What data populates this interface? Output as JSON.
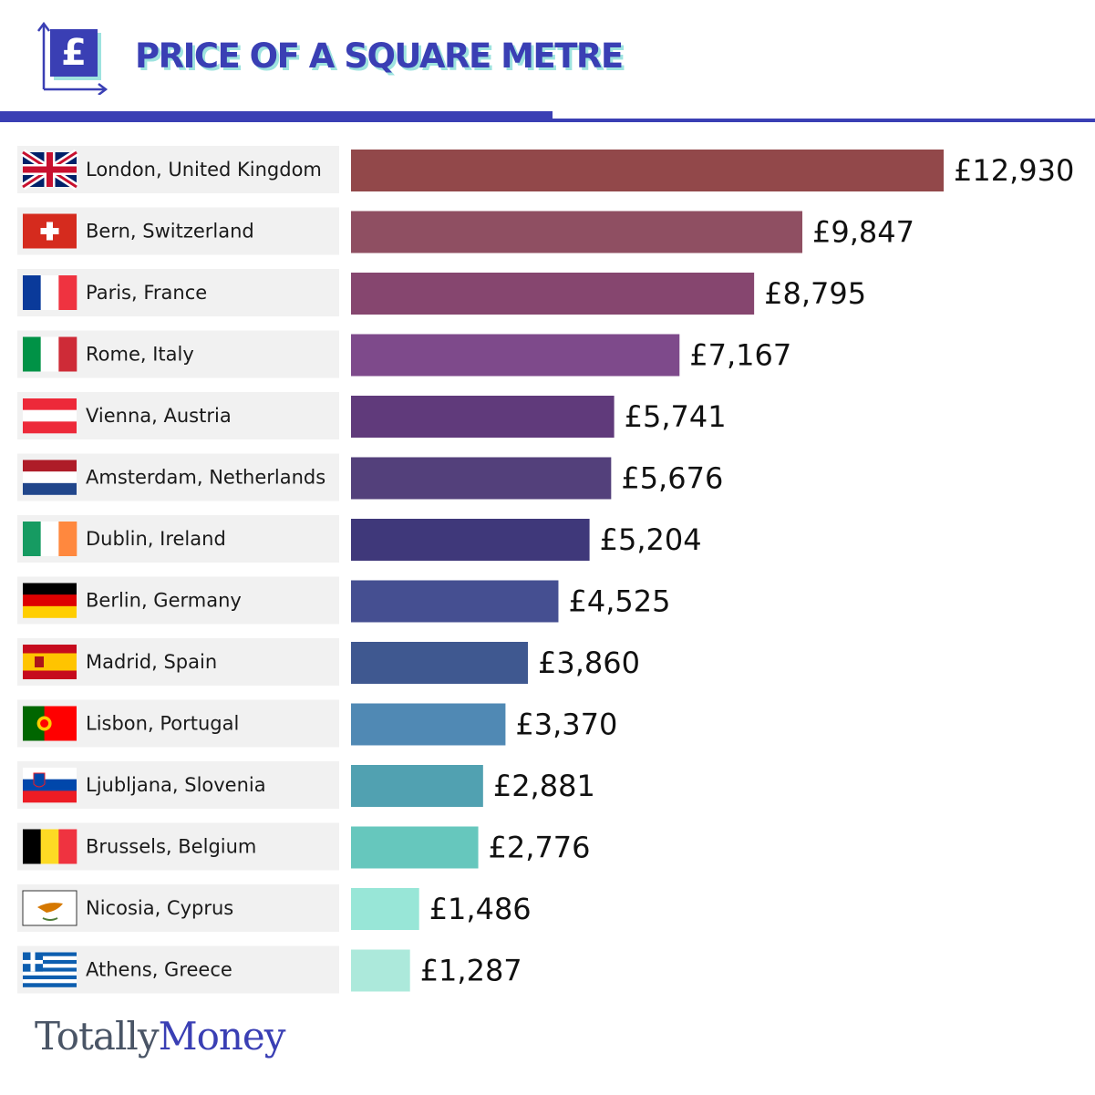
{
  "header": {
    "title": "PRICE OF A SQUARE METRE",
    "icon": "pound-sign-icon",
    "icon_glyph": "£",
    "title_color": "#3a3fb4",
    "shadow_color": "#9ee3df"
  },
  "brand": {
    "part1": "Totally",
    "part2": "Money"
  },
  "chart_data": {
    "type": "bar",
    "orientation": "horizontal",
    "title": "PRICE OF A SQUARE METRE",
    "xlabel": "",
    "ylabel": "",
    "unit": "£",
    "grid": false,
    "legend": "none",
    "xlim": [
      0,
      12930
    ],
    "categories": [
      "London, United Kingdom",
      "Bern, Switzerland",
      "Paris, France",
      "Rome, Italy",
      "Vienna, Austria",
      "Amsterdam, Netherlands",
      "Dublin, Ireland",
      "Berlin, Germany",
      "Madrid, Spain",
      "Lisbon, Portugal",
      "Ljubljana, Slovenia",
      "Brussels, Belgium",
      "Nicosia, Cyprus",
      "Athens, Greece"
    ],
    "values": [
      12930,
      9847,
      8795,
      7167,
      5741,
      5676,
      5204,
      4525,
      3860,
      3370,
      2881,
      2776,
      1486,
      1287
    ],
    "value_labels": [
      "£12,930",
      "£9,847",
      "£8,795",
      "£7,167",
      "£5,741",
      "£5,676",
      "£5,204",
      "£4,525",
      "£3,860",
      "£3,370",
      "£2,881",
      "£2,776",
      "£1,486",
      "£1,287"
    ],
    "bar_colors": [
      "#92484a",
      "#8f4f62",
      "#86466f",
      "#7e4a8b",
      "#603a7b",
      "#53407b",
      "#3f387a",
      "#454f91",
      "#3f5890",
      "#5089b4",
      "#51a1b1",
      "#66c7bd",
      "#98e6d7",
      "#ace9db"
    ],
    "flags": [
      "uk-flag-icon",
      "switzerland-flag-icon",
      "france-flag-icon",
      "italy-flag-icon",
      "austria-flag-icon",
      "netherlands-flag-icon",
      "ireland-flag-icon",
      "germany-flag-icon",
      "spain-flag-icon",
      "portugal-flag-icon",
      "slovenia-flag-icon",
      "belgium-flag-icon",
      "cyprus-flag-icon",
      "greece-flag-icon"
    ]
  }
}
